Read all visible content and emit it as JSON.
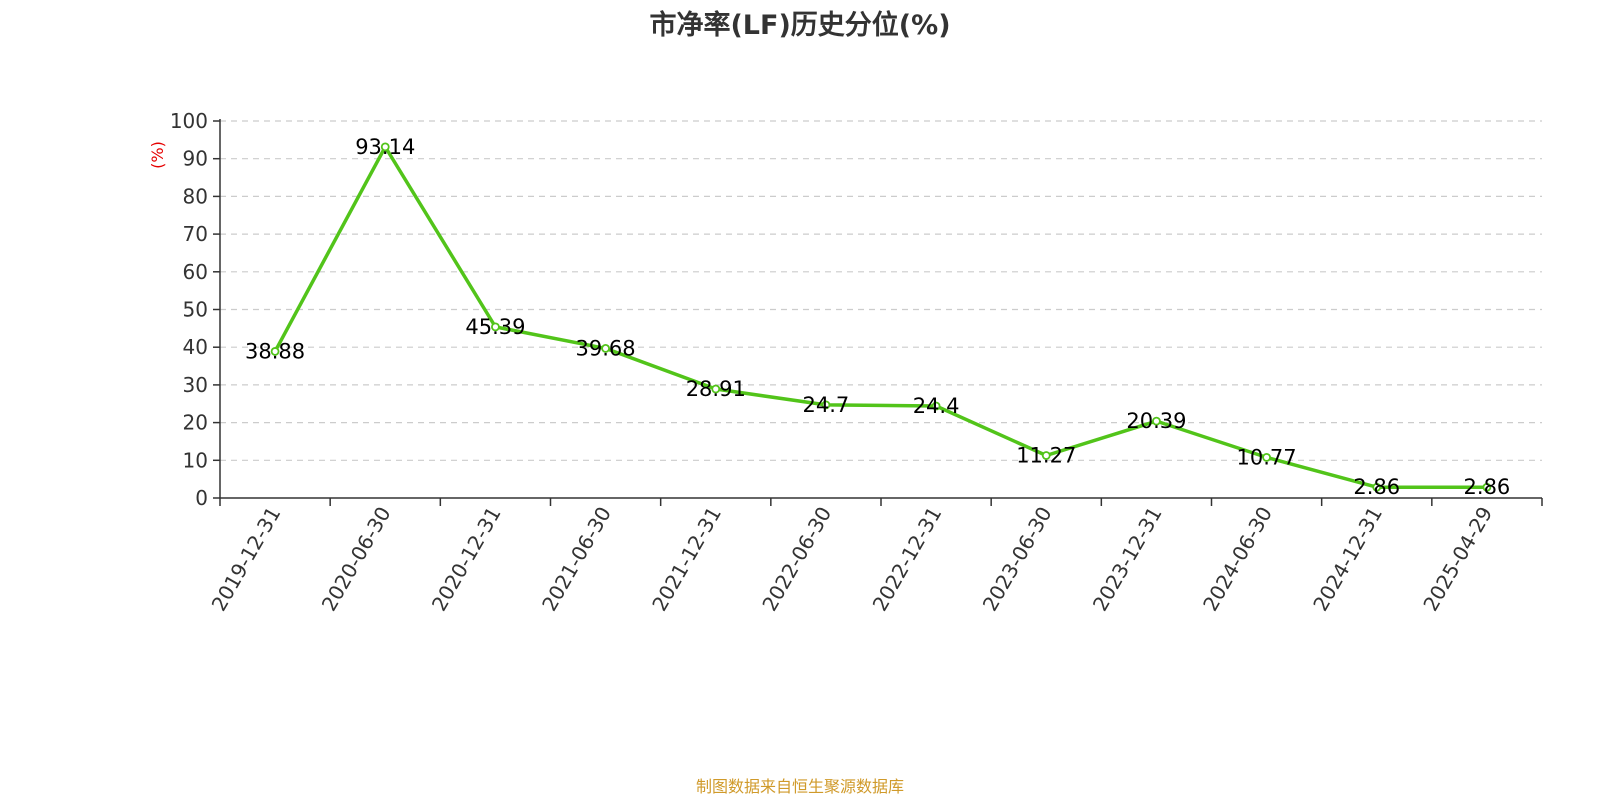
{
  "title": "市净率(LF)历史分位(%)",
  "source_note": "制图数据来自恒生聚源数据库",
  "colors": {
    "line": "#52c41a",
    "unit_label": "#e60000",
    "source_note": "#d09a2a",
    "axis": "#333333",
    "grid": "#cccccc"
  },
  "chart_data": {
    "type": "line",
    "title": "市净率(LF)历史分位(%)",
    "ylabel": "(%)",
    "xlabel": "",
    "ylim": [
      0,
      100
    ],
    "yticks": [
      0,
      10,
      20,
      30,
      40,
      50,
      60,
      70,
      80,
      90,
      100
    ],
    "grid": true,
    "categories": [
      "2019-12-31",
      "2020-06-30",
      "2020-12-31",
      "2021-06-30",
      "2021-12-31",
      "2022-06-30",
      "2022-12-31",
      "2023-06-30",
      "2023-12-31",
      "2024-06-30",
      "2024-12-31",
      "2025-04-29"
    ],
    "series": [
      {
        "values": [
          38.88,
          93.14,
          45.39,
          39.68,
          28.91,
          24.7,
          24.4,
          11.27,
          20.39,
          10.77,
          2.86,
          2.86
        ],
        "labels": [
          "38.88",
          "93.14",
          "45.39",
          "39.68",
          "28.91",
          "24.7",
          "24.4",
          "11.27",
          "20.39",
          "10.77",
          "2.86",
          "2.86"
        ]
      }
    ]
  }
}
